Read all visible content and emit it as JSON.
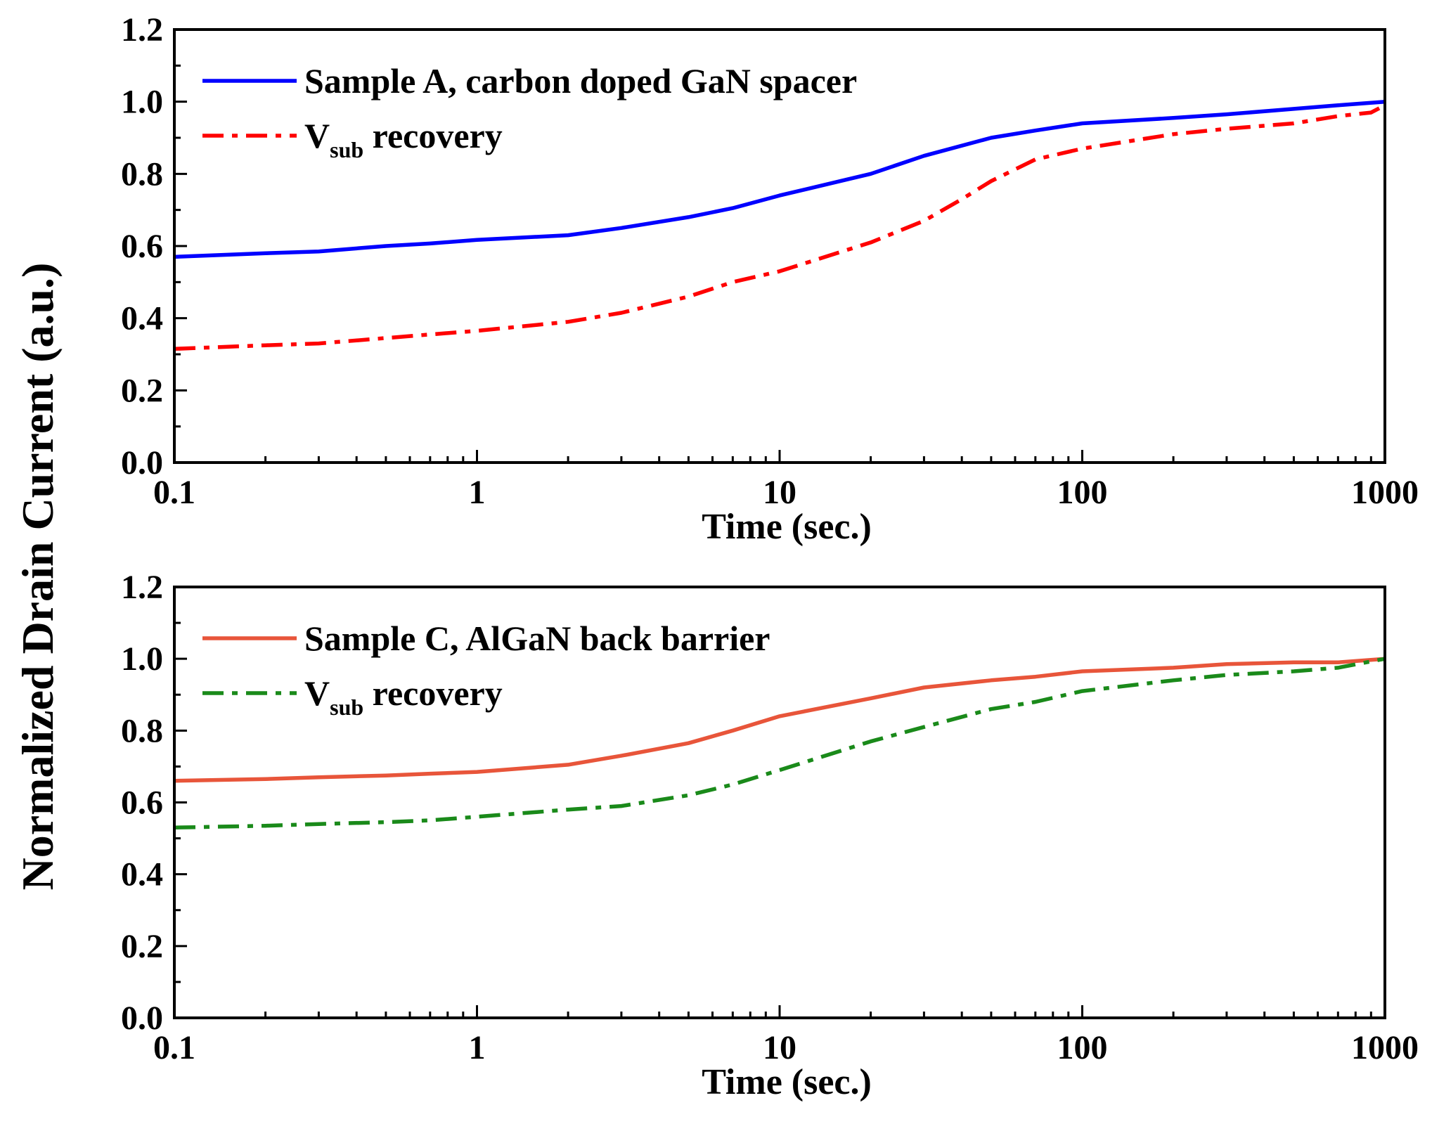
{
  "ylabel": "Normalized Drain Current (a.u.)",
  "chart_data": [
    {
      "type": "line",
      "panel": "top",
      "xscale": "log",
      "xlim": [
        0.1,
        1000
      ],
      "ylim": [
        0,
        1.2
      ],
      "xlabel": "Time (sec.)",
      "ylabel": "Normalized Drain Current (a.u.)",
      "x_ticks": [
        0.1,
        1,
        10,
        100,
        1000
      ],
      "x_tick_labels": [
        "0.1",
        "1",
        "10",
        "100",
        "1000"
      ],
      "y_ticks": [
        0,
        0.2,
        0.4,
        0.6,
        0.8,
        1.0,
        1.2
      ],
      "y_tick_labels": [
        "0.0",
        "0.2",
        "0.4",
        "0.6",
        "0.8",
        "1.0",
        "1.2"
      ],
      "legend_position": "top-left",
      "series": [
        {
          "name": "Sample A, carbon doped GaN spacer",
          "color": "#0000ff",
          "style": "solid",
          "x": [
            0.1,
            0.2,
            0.3,
            0.5,
            0.7,
            1,
            2,
            3,
            5,
            7,
            10,
            20,
            30,
            50,
            70,
            100,
            200,
            300,
            500,
            700,
            1000
          ],
          "y": [
            0.57,
            0.58,
            0.585,
            0.6,
            0.607,
            0.617,
            0.63,
            0.65,
            0.68,
            0.705,
            0.74,
            0.8,
            0.85,
            0.9,
            0.92,
            0.94,
            0.955,
            0.965,
            0.98,
            0.99,
            1.0
          ]
        },
        {
          "name": "V",
          "name_sub": "sub",
          "name_tail": " recovery",
          "color": "#ff0000",
          "style": "dashdot",
          "x": [
            0.1,
            0.2,
            0.3,
            0.5,
            0.7,
            1,
            2,
            3,
            5,
            7,
            10,
            20,
            30,
            40,
            50,
            70,
            100,
            200,
            300,
            500,
            700,
            900,
            1000
          ],
          "y": [
            0.315,
            0.325,
            0.33,
            0.345,
            0.355,
            0.365,
            0.39,
            0.415,
            0.46,
            0.5,
            0.53,
            0.61,
            0.67,
            0.73,
            0.78,
            0.84,
            0.87,
            0.91,
            0.925,
            0.94,
            0.96,
            0.97,
            0.99
          ]
        }
      ]
    },
    {
      "type": "line",
      "panel": "bottom",
      "xscale": "log",
      "xlim": [
        0.1,
        1000
      ],
      "ylim": [
        0,
        1.2
      ],
      "xlabel": "Time (sec.)",
      "ylabel": "Normalized Drain Current (a.u.)",
      "x_ticks": [
        0.1,
        1,
        10,
        100,
        1000
      ],
      "x_tick_labels": [
        "0.1",
        "1",
        "10",
        "100",
        "1000"
      ],
      "y_ticks": [
        0,
        0.2,
        0.4,
        0.6,
        0.8,
        1.0,
        1.2
      ],
      "y_tick_labels": [
        "0.0",
        "0.2",
        "0.4",
        "0.6",
        "0.8",
        "1.0",
        "1.2"
      ],
      "legend_position": "top-left",
      "series": [
        {
          "name": "Sample C, AlGaN back barrier",
          "color": "#e8553a",
          "style": "solid",
          "x": [
            0.1,
            0.2,
            0.3,
            0.5,
            0.7,
            1,
            2,
            3,
            5,
            7,
            10,
            20,
            30,
            50,
            70,
            100,
            200,
            300,
            500,
            700,
            1000
          ],
          "y": [
            0.66,
            0.665,
            0.67,
            0.675,
            0.68,
            0.685,
            0.705,
            0.73,
            0.765,
            0.8,
            0.84,
            0.89,
            0.92,
            0.94,
            0.95,
            0.965,
            0.975,
            0.985,
            0.99,
            0.99,
            1.0
          ]
        },
        {
          "name": "V",
          "name_sub": "sub",
          "name_tail": " recovery",
          "color": "#1a8a1a",
          "style": "dashdot",
          "x": [
            0.1,
            0.2,
            0.3,
            0.5,
            0.7,
            1,
            2,
            3,
            5,
            7,
            10,
            20,
            30,
            50,
            70,
            100,
            200,
            300,
            500,
            700,
            1000
          ],
          "y": [
            0.53,
            0.535,
            0.54,
            0.545,
            0.55,
            0.56,
            0.58,
            0.59,
            0.62,
            0.65,
            0.69,
            0.77,
            0.81,
            0.86,
            0.88,
            0.91,
            0.94,
            0.955,
            0.965,
            0.975,
            1.0
          ]
        }
      ]
    }
  ]
}
